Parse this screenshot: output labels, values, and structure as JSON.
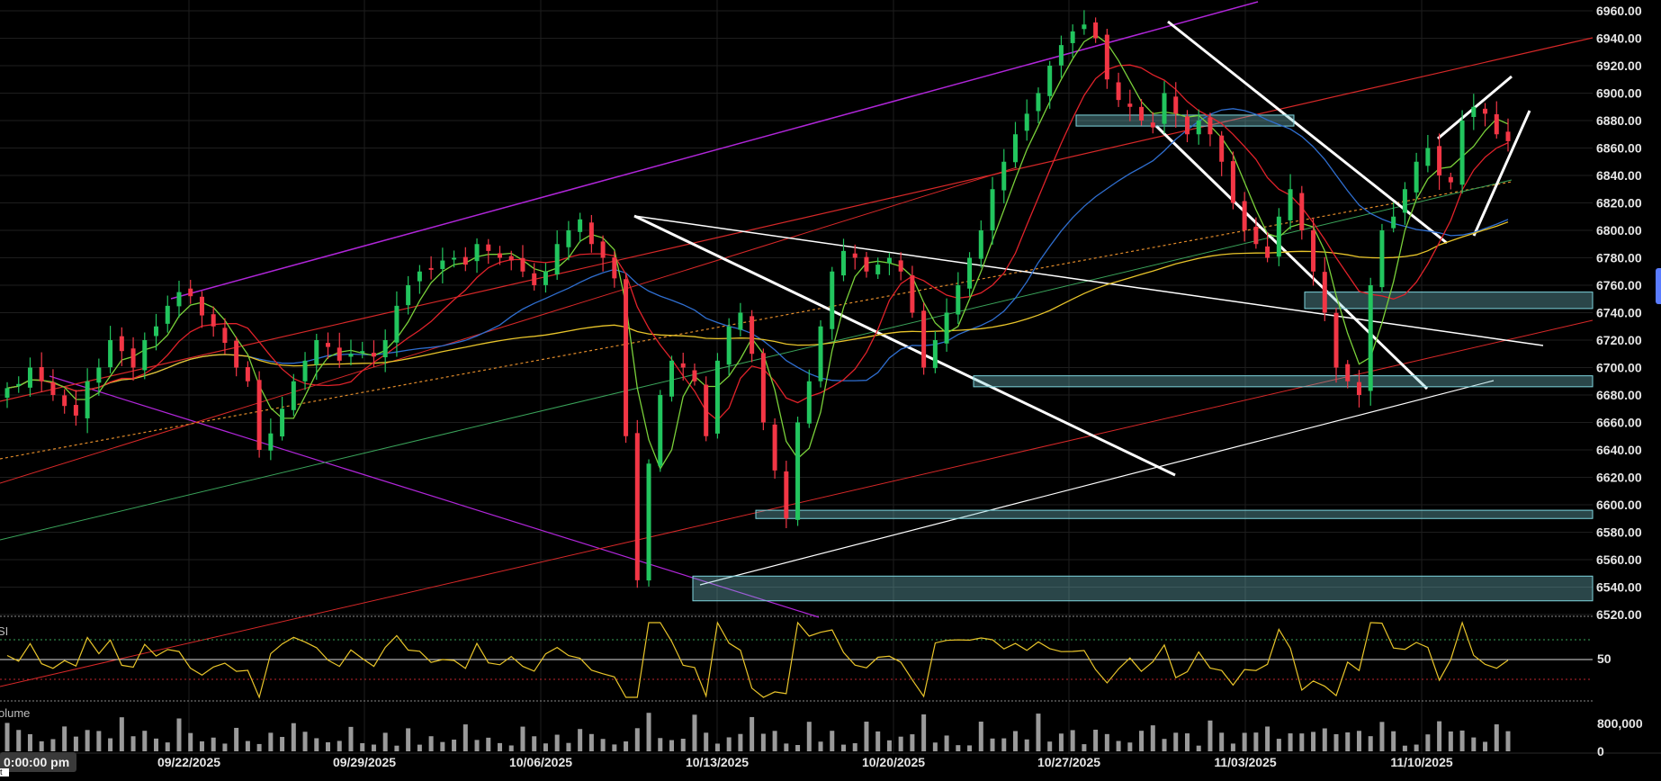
{
  "chart_data": {
    "type": "candlestick",
    "price_axis": {
      "ticks": [
        6960,
        6940,
        6920,
        6900,
        6880,
        6860,
        6840,
        6820,
        6800,
        6780,
        6760,
        6740,
        6720,
        6700,
        6680,
        6660,
        6640,
        6620,
        6600,
        6580,
        6560,
        6540,
        6520
      ],
      "ylim": [
        6510,
        6966
      ]
    },
    "date_axis": {
      "labels": [
        "09/22/2025",
        "09/29/2025",
        "10/06/2025",
        "10/13/2025",
        "10/20/2025",
        "10/27/2025",
        "11/03/2025",
        "11/10/2025"
      ]
    },
    "series": [
      {
        "kind": "candles",
        "up_color": "#22c55e",
        "down_color": "#f23645",
        "close_path": [
          6685,
          6688,
          6700,
          6690,
          6680,
          6672,
          6665,
          6690,
          6700,
          6720,
          6712,
          6700,
          6720,
          6730,
          6745,
          6755,
          6752,
          6738,
          6730,
          6718,
          6700,
          6690,
          6640,
          6652,
          6670,
          6690,
          6705,
          6720,
          6715,
          6705,
          6710,
          6712,
          6708,
          6720,
          6745,
          6760,
          6770,
          6772,
          6778,
          6780,
          6775,
          6790,
          6785,
          6780,
          6778,
          6770,
          6760,
          6770,
          6790,
          6800,
          6808,
          6790,
          6780,
          6765,
          6650,
          6545,
          6630,
          6680,
          6705,
          6700,
          6690,
          6650,
          6705,
          6730,
          6740,
          6710,
          6660,
          6625,
          6590,
          6660,
          6690,
          6730,
          6770,
          6785,
          6780,
          6770,
          6775,
          6780,
          6770,
          6740,
          6700,
          6720,
          6740,
          6760,
          6780,
          6800,
          6830,
          6850,
          6870,
          6885,
          6900,
          6920,
          6935,
          6945,
          6950,
          6940,
          6910,
          6895,
          6890,
          6880,
          6875,
          6900,
          6885,
          6870,
          6880,
          6870,
          6850,
          6820,
          6800,
          6790,
          6780,
          6810,
          6830,
          6800,
          6770,
          6740,
          6700,
          6690,
          6680,
          6760,
          6800,
          6810,
          6830,
          6850,
          6860,
          6840,
          6835,
          6880,
          6890,
          6885,
          6870,
          6865
        ]
      },
      {
        "kind": "ma",
        "name": "",
        "color": "#2f6ecf",
        "role": "50"
      },
      {
        "kind": "ma",
        "name": "",
        "color": "#e8c42a",
        "role": "200"
      },
      {
        "kind": "ma",
        "name": "",
        "color": "#e0222a",
        "role": "20"
      },
      {
        "kind": "ma",
        "name": "",
        "color": "#7ad13a",
        "role": "10"
      }
    ],
    "zones": [
      {
        "from": 6876,
        "to": 6884,
        "start": "10/27/2025",
        "end": "11/03/2025"
      },
      {
        "from": 6743,
        "to": 6755,
        "start": "11/03/2025",
        "end": "edge"
      },
      {
        "from": 6686,
        "to": 6694,
        "start": "10/20/2025",
        "end": "edge"
      },
      {
        "from": 6590,
        "to": 6596,
        "start": "10/13/2025",
        "end": "edge"
      },
      {
        "from": 6530,
        "to": 6548,
        "start": "10/13/2025",
        "end": "edge"
      }
    ],
    "rsi_pane": {
      "label": "SI",
      "tick": "50"
    },
    "volume_pane": {
      "label": "olume",
      "ticks": [
        "800,000",
        "0"
      ]
    },
    "crosshair_time": "0:00:00 pm",
    "corner_mark": "t"
  }
}
